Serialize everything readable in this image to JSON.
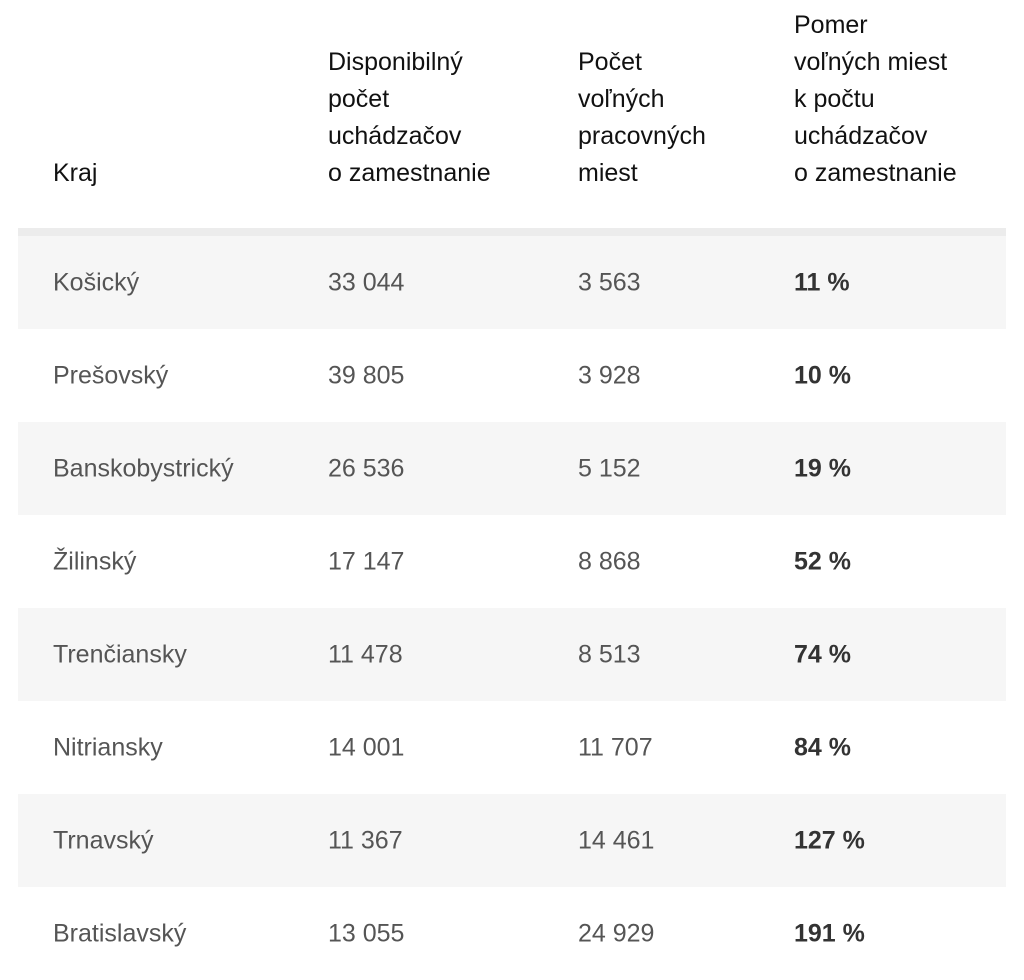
{
  "chart_data": {
    "type": "table",
    "columns": [
      "Kraj",
      "Disponibilný\npočet\nuchádzačov\no zamestnanie",
      "Počet\nvoľných\npracovných\nmiest",
      "Pomer\nvoľných miest\nk počtu\nuchádzačov\no zamestnanie"
    ],
    "rows": [
      {
        "region": "Košický",
        "applicants": "33 044",
        "vacancies": "3 563",
        "ratio": "11 %"
      },
      {
        "region": "Prešovský",
        "applicants": "39 805",
        "vacancies": "3 928",
        "ratio": "10 %"
      },
      {
        "region": "Banskobystrický",
        "applicants": "26 536",
        "vacancies": "5 152",
        "ratio": "19 %"
      },
      {
        "region": "Žilinský",
        "applicants": "17 147",
        "vacancies": "8 868",
        "ratio": "52 %"
      },
      {
        "region": "Trenčiansky",
        "applicants": "11 478",
        "vacancies": "8 513",
        "ratio": "74 %"
      },
      {
        "region": "Nitriansky",
        "applicants": "14 001",
        "vacancies": "11 707",
        "ratio": "84 %"
      },
      {
        "region": "Trnavský",
        "applicants": "11 367",
        "vacancies": "14 461",
        "ratio": "127 %"
      },
      {
        "region": "Bratislavský",
        "applicants": "13 055",
        "vacancies": "24 929",
        "ratio": "191 %"
      }
    ]
  }
}
